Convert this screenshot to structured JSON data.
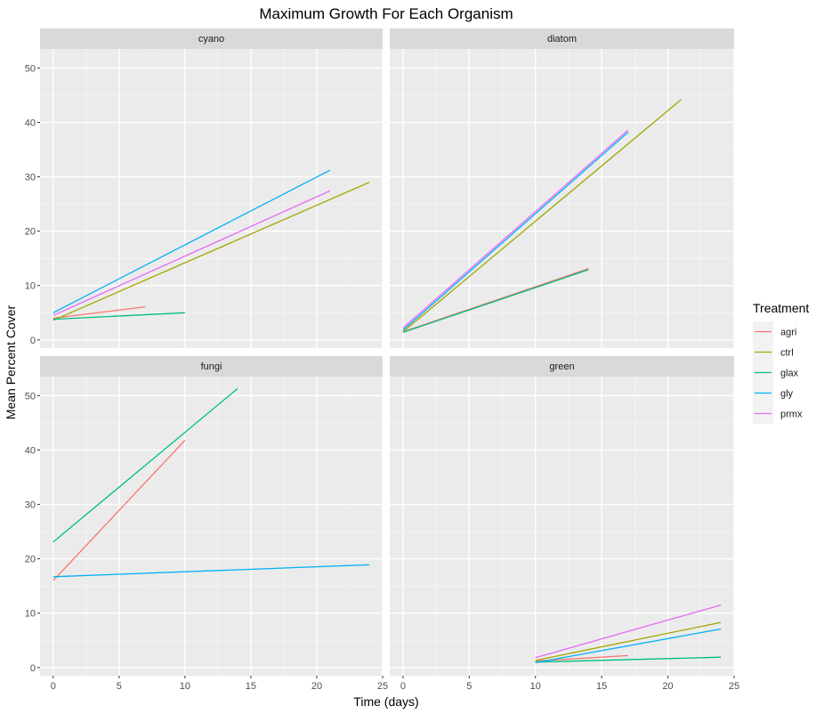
{
  "chart_data": {
    "type": "line",
    "title": "Maximum Growth For Each Organism",
    "xlabel": "Time (days)",
    "ylabel": "Mean Percent Cover",
    "xlim": [
      -1,
      25
    ],
    "ylim": [
      -1.5,
      53.5
    ],
    "x_ticks": [
      0,
      5,
      10,
      15,
      20,
      25
    ],
    "y_ticks": [
      0,
      10,
      20,
      30,
      40,
      50
    ],
    "grid": true,
    "legend_position": "right",
    "legend_title": "Treatment",
    "treatments": [
      {
        "name": "agri",
        "color": "#F8766D"
      },
      {
        "name": "ctrl",
        "color": "#A3A500"
      },
      {
        "name": "glax",
        "color": "#00BF7D"
      },
      {
        "name": "gly",
        "color": "#00B0F6"
      },
      {
        "name": "prmx",
        "color": "#E76BF3"
      }
    ],
    "panels": [
      {
        "label": "cyano",
        "series": [
          {
            "name": "agri",
            "points": [
              [
                0,
                4.0
              ],
              [
                7,
                6.1
              ]
            ]
          },
          {
            "name": "ctrl",
            "points": [
              [
                0,
                3.6
              ],
              [
                24,
                29.0
              ]
            ]
          },
          {
            "name": "glax",
            "points": [
              [
                0,
                3.8
              ],
              [
                10,
                5.0
              ]
            ]
          },
          {
            "name": "gly",
            "points": [
              [
                0,
                5.0
              ],
              [
                21,
                31.2
              ]
            ]
          },
          {
            "name": "prmx",
            "points": [
              [
                0,
                4.5
              ],
              [
                21,
                27.4
              ]
            ]
          }
        ]
      },
      {
        "label": "diatom",
        "series": [
          {
            "name": "agri",
            "points": [
              [
                0,
                1.5
              ],
              [
                14,
                13.1
              ]
            ]
          },
          {
            "name": "ctrl",
            "points": [
              [
                0,
                1.5
              ],
              [
                21,
                44.2
              ]
            ]
          },
          {
            "name": "glax",
            "points": [
              [
                0,
                1.4
              ],
              [
                14,
                12.9
              ]
            ]
          },
          {
            "name": "gly",
            "points": [
              [
                0,
                1.8
              ],
              [
                17,
                38.2
              ]
            ]
          },
          {
            "name": "prmx",
            "points": [
              [
                0,
                2.2
              ],
              [
                17,
                38.6
              ]
            ]
          }
        ]
      },
      {
        "label": "fungi",
        "series": [
          {
            "name": "agri",
            "points": [
              [
                0,
                16.0
              ],
              [
                10,
                41.8
              ]
            ]
          },
          {
            "name": "glax",
            "points": [
              [
                0,
                23.1
              ],
              [
                14,
                51.3
              ]
            ]
          },
          {
            "name": "gly",
            "points": [
              [
                0,
                16.7
              ],
              [
                24,
                18.9
              ]
            ]
          }
        ]
      },
      {
        "label": "green",
        "series": [
          {
            "name": "agri",
            "points": [
              [
                10,
                1.2
              ],
              [
                17,
                2.2
              ]
            ]
          },
          {
            "name": "ctrl",
            "points": [
              [
                10,
                1.3
              ],
              [
                24,
                8.3
              ]
            ]
          },
          {
            "name": "glax",
            "points": [
              [
                10,
                1.0
              ],
              [
                24,
                1.9
              ]
            ]
          },
          {
            "name": "gly",
            "points": [
              [
                10,
                0.9
              ],
              [
                24,
                7.1
              ]
            ]
          },
          {
            "name": "prmx",
            "points": [
              [
                10,
                1.8
              ],
              [
                24,
                11.5
              ]
            ]
          }
        ]
      }
    ]
  }
}
